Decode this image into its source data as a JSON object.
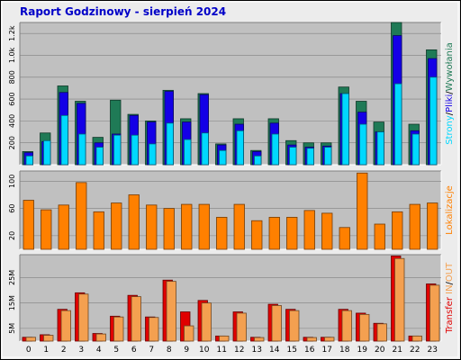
{
  "title": "Raport Godzinowy -   sierpień 2024",
  "colors": {
    "bg": "#ececec",
    "plot_bg": "#c0c0c0",
    "title": "#0000c8",
    "hits": "#1f7a56",
    "files": "#1400e6",
    "pages": "#00d8ff",
    "visits": "#ff8000",
    "kbin": "#e00000",
    "kbout": "#f4a050",
    "axis_text": "#000000"
  },
  "chart_data": [
    {
      "type": "bar",
      "panel": "top",
      "categories": [
        "0",
        "1",
        "2",
        "3",
        "4",
        "5",
        "6",
        "7",
        "8",
        "9",
        "10",
        "11",
        "12",
        "13",
        "14",
        "15",
        "16",
        "17",
        "18",
        "19",
        "20",
        "21",
        "22",
        "23"
      ],
      "ylim": [
        0,
        1300
      ],
      "yticks": [
        200,
        400,
        600,
        800,
        1000,
        1200
      ],
      "ytick_labels": [
        "200",
        "400",
        "600",
        "800",
        "1.0k",
        "1.2k"
      ],
      "side_label_parts": [
        {
          "text": "Strony",
          "color_key": "pages"
        },
        {
          "text": "/",
          "color_key": "axis_text"
        },
        {
          "text": "Pliki",
          "color_key": "files"
        },
        {
          "text": "/",
          "color_key": "axis_text"
        },
        {
          "text": "Wywołania",
          "color_key": "hits"
        }
      ],
      "series": [
        {
          "name": "Wywołania",
          "color_key": "hits",
          "values": [
            120,
            290,
            720,
            580,
            250,
            590,
            460,
            400,
            680,
            420,
            650,
            190,
            420,
            130,
            420,
            220,
            200,
            200,
            710,
            580,
            390,
            1300,
            370,
            1050
          ]
        },
        {
          "name": "Pliki",
          "color_key": "files",
          "values": [
            110,
            210,
            660,
            560,
            200,
            280,
            450,
            390,
            670,
            390,
            640,
            180,
            370,
            120,
            380,
            180,
            160,
            170,
            650,
            480,
            300,
            1180,
            310,
            970
          ]
        },
        {
          "name": "Strony",
          "color_key": "pages",
          "values": [
            80,
            220,
            450,
            280,
            160,
            270,
            270,
            190,
            380,
            230,
            290,
            130,
            310,
            80,
            280,
            160,
            150,
            160,
            650,
            370,
            300,
            740,
            280,
            800
          ]
        }
      ]
    },
    {
      "type": "bar",
      "panel": "middle",
      "categories": [
        "0",
        "1",
        "2",
        "3",
        "4",
        "5",
        "6",
        "7",
        "8",
        "9",
        "10",
        "11",
        "12",
        "13",
        "14",
        "15",
        "16",
        "17",
        "18",
        "19",
        "20",
        "21",
        "22",
        "23"
      ],
      "ylim": [
        0,
        115
      ],
      "yticks": [
        20,
        60,
        100
      ],
      "ytick_labels": [
        "20",
        "60",
        "100"
      ],
      "side_label_parts": [
        {
          "text": "Lokalizacje",
          "color_key": "visits"
        }
      ],
      "series": [
        {
          "name": "Lokalizacje",
          "color_key": "visits",
          "values": [
            72,
            58,
            65,
            98,
            55,
            68,
            80,
            65,
            60,
            66,
            66,
            47,
            66,
            42,
            47,
            47,
            57,
            53,
            32,
            112,
            37,
            55,
            66,
            68
          ]
        }
      ]
    },
    {
      "type": "bar",
      "panel": "bottom",
      "categories": [
        "0",
        "1",
        "2",
        "3",
        "4",
        "5",
        "6",
        "7",
        "8",
        "9",
        "10",
        "11",
        "12",
        "13",
        "14",
        "15",
        "16",
        "17",
        "18",
        "19",
        "20",
        "21",
        "22",
        "23"
      ],
      "ylim": [
        0,
        34
      ],
      "yticks": [
        5,
        15,
        25
      ],
      "ytick_labels": [
        "5M",
        "15M",
        "25M"
      ],
      "side_label_parts": [
        {
          "text": "Transfer",
          "color_key": "kbin"
        },
        {
          "text": " IN",
          "color_key": "kbout"
        },
        {
          "text": "/",
          "color_key": "axis_text"
        },
        {
          "text": "OUT",
          "color_key": "kbout"
        }
      ],
      "series": [
        {
          "name": "IN",
          "color_key": "kbin",
          "values": [
            1.5,
            2.5,
            12.5,
            19,
            3,
            9.8,
            18,
            9.5,
            24,
            11.5,
            16,
            2,
            11.5,
            1.5,
            14.5,
            12.5,
            1.5,
            1.5,
            12.5,
            11,
            7,
            33.5,
            2,
            22.5
          ]
        },
        {
          "name": "OUT",
          "color_key": "kbout",
          "values": [
            1.5,
            2.3,
            12,
            18.5,
            2.8,
            9.5,
            17.5,
            9.3,
            23.5,
            6,
            15,
            2,
            11,
            1.4,
            14,
            12,
            1.4,
            1.5,
            12,
            10.5,
            6.8,
            32.5,
            2,
            22
          ]
        }
      ]
    }
  ]
}
